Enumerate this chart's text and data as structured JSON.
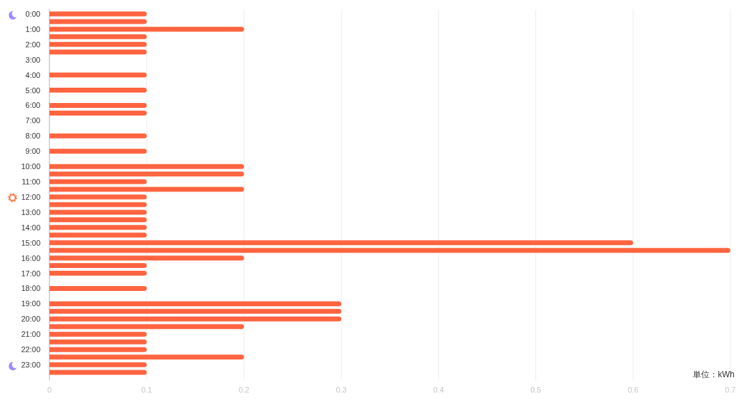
{
  "chart_data": {
    "type": "bar",
    "orientation": "horizontal",
    "categories": [
      "0:00",
      null,
      "1:00",
      null,
      "2:00",
      null,
      "3:00",
      null,
      "4:00",
      null,
      "5:00",
      null,
      "6:00",
      null,
      "7:00",
      null,
      "8:00",
      null,
      "9:00",
      null,
      "10:00",
      null,
      "11:00",
      null,
      "12:00",
      null,
      "13:00",
      null,
      "14:00",
      null,
      "15:00",
      null,
      "16:00",
      null,
      "17:00",
      null,
      "18:00",
      null,
      "19:00",
      null,
      "20:00",
      null,
      "21:00",
      null,
      "22:00",
      null,
      "23:00",
      null
    ],
    "values": [
      0.1,
      0.1,
      0.2,
      0.1,
      0.1,
      0.1,
      null,
      null,
      0.1,
      null,
      0.1,
      null,
      0.1,
      0.1,
      null,
      null,
      0.1,
      null,
      0.1,
      null,
      0.2,
      0.2,
      0.1,
      0.2,
      0.1,
      0.1,
      0.1,
      0.1,
      0.1,
      0.1,
      0.6,
      0.7,
      0.2,
      0.1,
      0.1,
      null,
      0.1,
      null,
      0.3,
      0.3,
      0.3,
      0.2,
      0.1,
      0.1,
      0.1,
      0.2,
      0.1,
      0.1
    ],
    "color": "#ff6440",
    "xlim": [
      0,
      0.7
    ],
    "xticks": [
      0,
      0.1,
      0.2,
      0.3,
      0.4,
      0.5,
      0.6,
      0.7
    ],
    "xlabel": "単位：kWh",
    "grid": "x"
  }
}
